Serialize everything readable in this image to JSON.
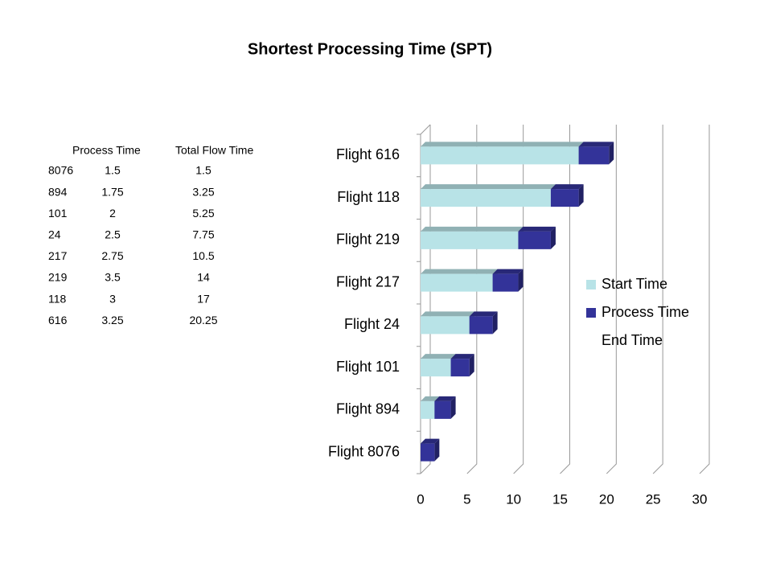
{
  "chart_data": {
    "type": "bar3d_stacked_horizontal",
    "title": "Shortest Processing Time (SPT)",
    "categories": [
      "Flight 8076",
      "Flight 894",
      "Flight 101",
      "Flight 24",
      "Flight 217",
      "Flight 219",
      "Flight 118",
      "Flight 616"
    ],
    "series": [
      {
        "name": "Start Time",
        "color": "#b8e3e7",
        "values": [
          0,
          1.5,
          3.25,
          5.25,
          7.75,
          10.5,
          14,
          17
        ]
      },
      {
        "name": "Process Time",
        "color": "#333399",
        "values": [
          1.5,
          1.75,
          2,
          2.5,
          2.75,
          3.5,
          3,
          3.25
        ]
      },
      {
        "name": "End Time",
        "color": "none",
        "values": [
          null,
          null,
          null,
          null,
          null,
          null,
          null,
          null
        ]
      }
    ],
    "xlim": [
      0,
      30
    ],
    "xticks": [
      0,
      5,
      10,
      15,
      20,
      25,
      30
    ],
    "grid": true,
    "legend": "right"
  },
  "table": {
    "header": [
      "Process Time",
      "Total Flow Time"
    ],
    "rows": [
      [
        "8076",
        "1.5",
        "1.5"
      ],
      [
        "894",
        "1.75",
        "3.25"
      ],
      [
        "101",
        "2",
        "5.25"
      ],
      [
        "24",
        "2.5",
        "7.75"
      ],
      [
        "217",
        "2.75",
        "10.5"
      ],
      [
        "219",
        "3.5",
        "14"
      ],
      [
        "118",
        "3",
        "17"
      ],
      [
        "616",
        "3.25",
        "20.25"
      ]
    ]
  }
}
